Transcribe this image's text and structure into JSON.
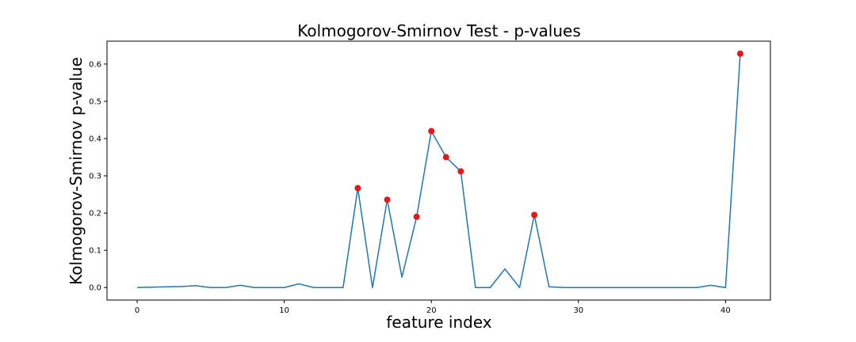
{
  "chart_data": {
    "type": "line",
    "title": "Kolmogorov-Smirnov Test - p-values",
    "xlabel": "feature index",
    "ylabel": "Kolmogorov-Smirnov p-value",
    "xlim": [
      -2.05,
      43.05
    ],
    "ylim": [
      -0.0335,
      0.6615
    ],
    "x_ticks": [
      0,
      10,
      20,
      30,
      40
    ],
    "x_tick_labels": [
      "0",
      "10",
      "20",
      "30",
      "40"
    ],
    "y_ticks": [
      0.0,
      0.1,
      0.2,
      0.3,
      0.4,
      0.5,
      0.6
    ],
    "y_tick_labels": [
      "0.0",
      "0.1",
      "0.2",
      "0.3",
      "0.4",
      "0.5",
      "0.6"
    ],
    "grid": false,
    "line_color": "#1f77b4",
    "marker_color": "#e31a1c",
    "series": [
      {
        "x": [
          0,
          1,
          2,
          3,
          4,
          5,
          6,
          7,
          8,
          9,
          10,
          11,
          12,
          13,
          14,
          15,
          16,
          17,
          18,
          19,
          20,
          21,
          22,
          23,
          24,
          25,
          26,
          27,
          28,
          29,
          30,
          31,
          32,
          33,
          34,
          35,
          36,
          37,
          38,
          39,
          40,
          41
        ],
        "values": [
          0.0,
          0.001,
          0.002,
          0.003,
          0.005,
          0.0,
          0.0,
          0.006,
          0.0,
          0.0,
          0.0,
          0.01,
          0.0,
          0.0,
          0.0,
          0.267,
          0.0,
          0.236,
          0.028,
          0.19,
          0.42,
          0.35,
          0.312,
          0.0,
          0.0,
          0.05,
          0.0,
          0.195,
          0.002,
          0.0,
          0.0,
          0.0,
          0.0,
          0.0,
          0.0,
          0.0,
          0.0,
          0.0,
          0.0,
          0.006,
          0.0,
          0.628
        ]
      }
    ],
    "highlighted_points": {
      "x": [
        15,
        17,
        19,
        20,
        21,
        22,
        27,
        41
      ],
      "values": [
        0.267,
        0.236,
        0.19,
        0.42,
        0.35,
        0.312,
        0.195,
        0.628
      ]
    }
  }
}
